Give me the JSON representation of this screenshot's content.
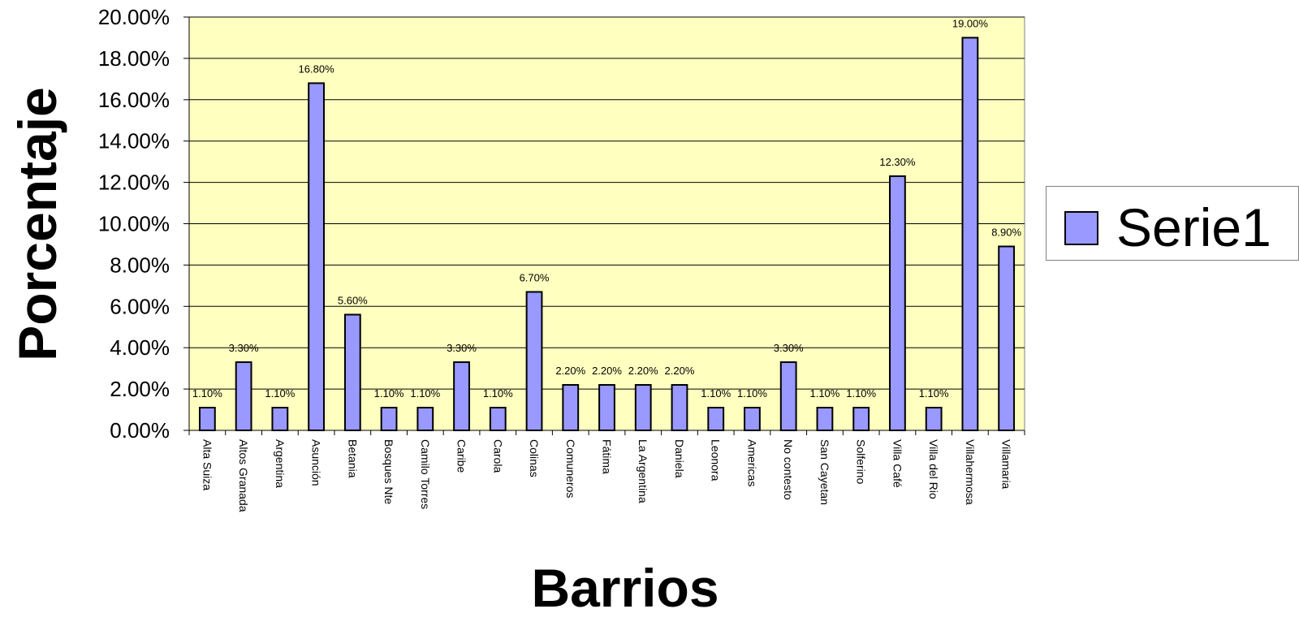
{
  "chart_data": {
    "type": "bar",
    "categories": [
      "Alta Suiza",
      "Altos Granada",
      "Argentina",
      "Asunción",
      "Betania",
      "Bosques Nte",
      "Camilo Torres",
      "Caribe",
      "Carola",
      "Colinas",
      "Comuneros",
      "Fátima",
      "La Argentina",
      "Daniela",
      "Leonora",
      "Americas",
      "No contesto",
      "San Cayetan",
      "Solferino",
      "Villa Café",
      "Villa del Rio",
      "Villahermosa",
      "Villamaria"
    ],
    "values": [
      1.1,
      3.3,
      1.1,
      16.8,
      5.6,
      1.1,
      1.1,
      3.3,
      1.1,
      6.7,
      2.2,
      2.2,
      2.2,
      2.2,
      1.1,
      1.1,
      3.3,
      1.1,
      1.1,
      12.3,
      1.1,
      19.0,
      8.9
    ],
    "data_labels": [
      "1.10%",
      "3.30%",
      "1.10%",
      "16.80%",
      "5.60%",
      "1.10%",
      "1.10%",
      "3.30%",
      "1.10%",
      "6.70%",
      "2.20%",
      "2.20%",
      "2.20%",
      "2.20%",
      "1.10%",
      "1.10%",
      "3.30%",
      "1.10%",
      "1.10%",
      "12.30%",
      "1.10%",
      "19.00%",
      "8.90%"
    ],
    "series": [
      {
        "name": "Serie1",
        "color": "#9999ff"
      }
    ],
    "xlabel": "Barrios",
    "ylabel": "Porcentaje",
    "ylim": [
      0,
      20
    ],
    "yticks": [
      "0.00%",
      "2.00%",
      "4.00%",
      "6.00%",
      "8.00%",
      "10.00%",
      "12.00%",
      "14.00%",
      "16.00%",
      "18.00%",
      "20.00%"
    ],
    "grid": true,
    "legend": "right",
    "plot_background": "#ffffc0"
  }
}
